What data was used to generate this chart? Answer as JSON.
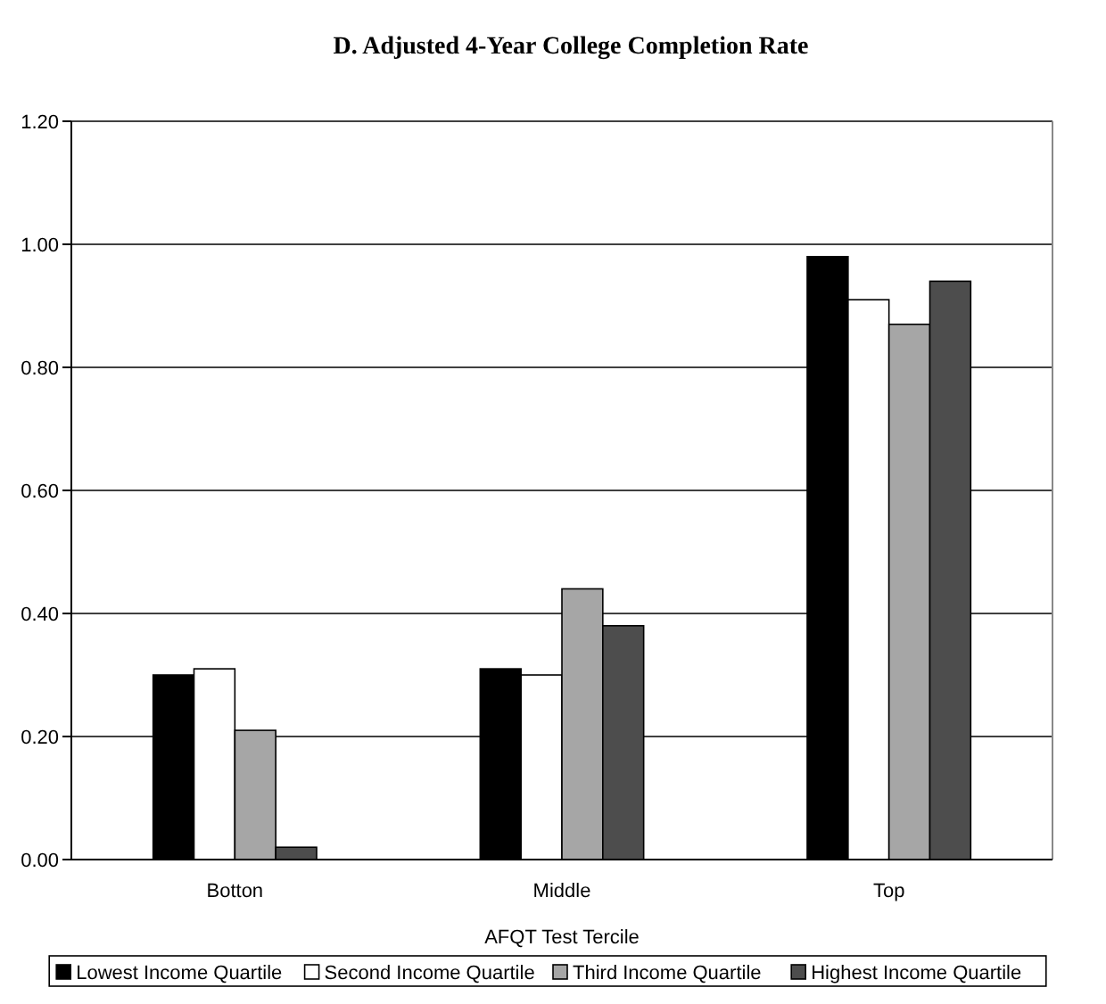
{
  "chart_data": {
    "type": "bar",
    "title": "D. Adjusted 4-Year College Completion Rate",
    "xlabel": "AFQT Test Tercile",
    "categories": [
      "Botton",
      "Middle",
      "Top"
    ],
    "series": [
      {
        "name": "Lowest Income Quartile",
        "color": "#000000",
        "values": [
          0.3,
          0.31,
          0.98
        ]
      },
      {
        "name": "Second Income Quartile",
        "color": "#ffffff",
        "values": [
          0.31,
          0.3,
          0.91
        ]
      },
      {
        "name": "Third Income Quartile",
        "color": "#a6a6a6",
        "values": [
          0.21,
          0.44,
          0.87
        ]
      },
      {
        "name": "Highest Income Quartile",
        "color": "#4d4d4d",
        "values": [
          0.02,
          0.38,
          0.94
        ]
      }
    ],
    "ylim": [
      0,
      1.2
    ],
    "yticks": [
      {
        "value": 0,
        "label": "0.00"
      },
      {
        "value": 0.2,
        "label": "0.20"
      },
      {
        "value": 0.4,
        "label": "0.40"
      },
      {
        "value": 0.6,
        "label": "0.60"
      },
      {
        "value": 0.8,
        "label": "0.80"
      },
      {
        "value": 1.0,
        "label": "1.00"
      },
      {
        "value": 1.2,
        "label": "1.20"
      }
    ],
    "grid": "y",
    "legend": "bottom"
  }
}
